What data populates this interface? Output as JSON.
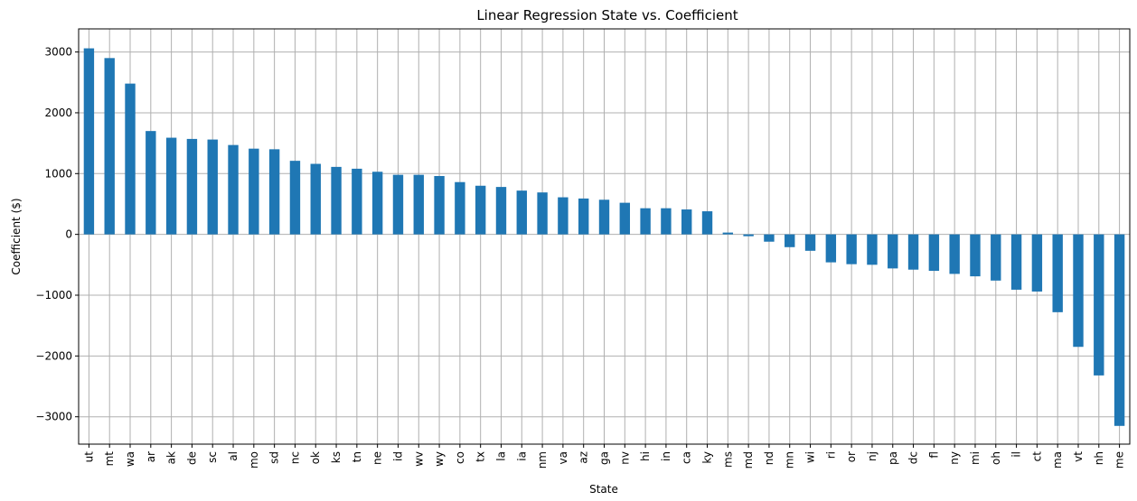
{
  "chart_data": {
    "type": "bar",
    "title": "Linear Regression State vs. Coefficient",
    "xlabel": "State",
    "ylabel": "Coefficient ($)",
    "ylim": [
      -3450,
      3380
    ],
    "yticks": [
      -3000,
      -2000,
      -1000,
      0,
      1000,
      2000,
      3000
    ],
    "ytick_labels": [
      "−3000",
      "−2000",
      "−1000",
      "0",
      "1000",
      "2000",
      "3000"
    ],
    "grid": true,
    "bar_color": "#1f77b4",
    "categories": [
      "ut",
      "mt",
      "wa",
      "ar",
      "ak",
      "de",
      "sc",
      "al",
      "mo",
      "sd",
      "nc",
      "ok",
      "ks",
      "tn",
      "ne",
      "id",
      "wv",
      "wy",
      "co",
      "tx",
      "la",
      "ia",
      "nm",
      "va",
      "az",
      "ga",
      "nv",
      "hi",
      "in",
      "ca",
      "ky",
      "ms",
      "md",
      "nd",
      "mn",
      "wi",
      "ri",
      "or",
      "nj",
      "pa",
      "dc",
      "fl",
      "ny",
      "mi",
      "oh",
      "il",
      "ct",
      "ma",
      "vt",
      "nh",
      "me"
    ],
    "values": [
      3060,
      2900,
      2480,
      1700,
      1590,
      1570,
      1560,
      1470,
      1410,
      1400,
      1210,
      1160,
      1110,
      1080,
      1030,
      980,
      980,
      960,
      860,
      800,
      780,
      720,
      690,
      610,
      590,
      570,
      520,
      430,
      430,
      410,
      380,
      30,
      -30,
      -120,
      -210,
      -270,
      -460,
      -490,
      -500,
      -560,
      -580,
      -600,
      -650,
      -690,
      -760,
      -910,
      -940,
      -1280,
      -1850,
      -2320,
      -3150
    ]
  }
}
